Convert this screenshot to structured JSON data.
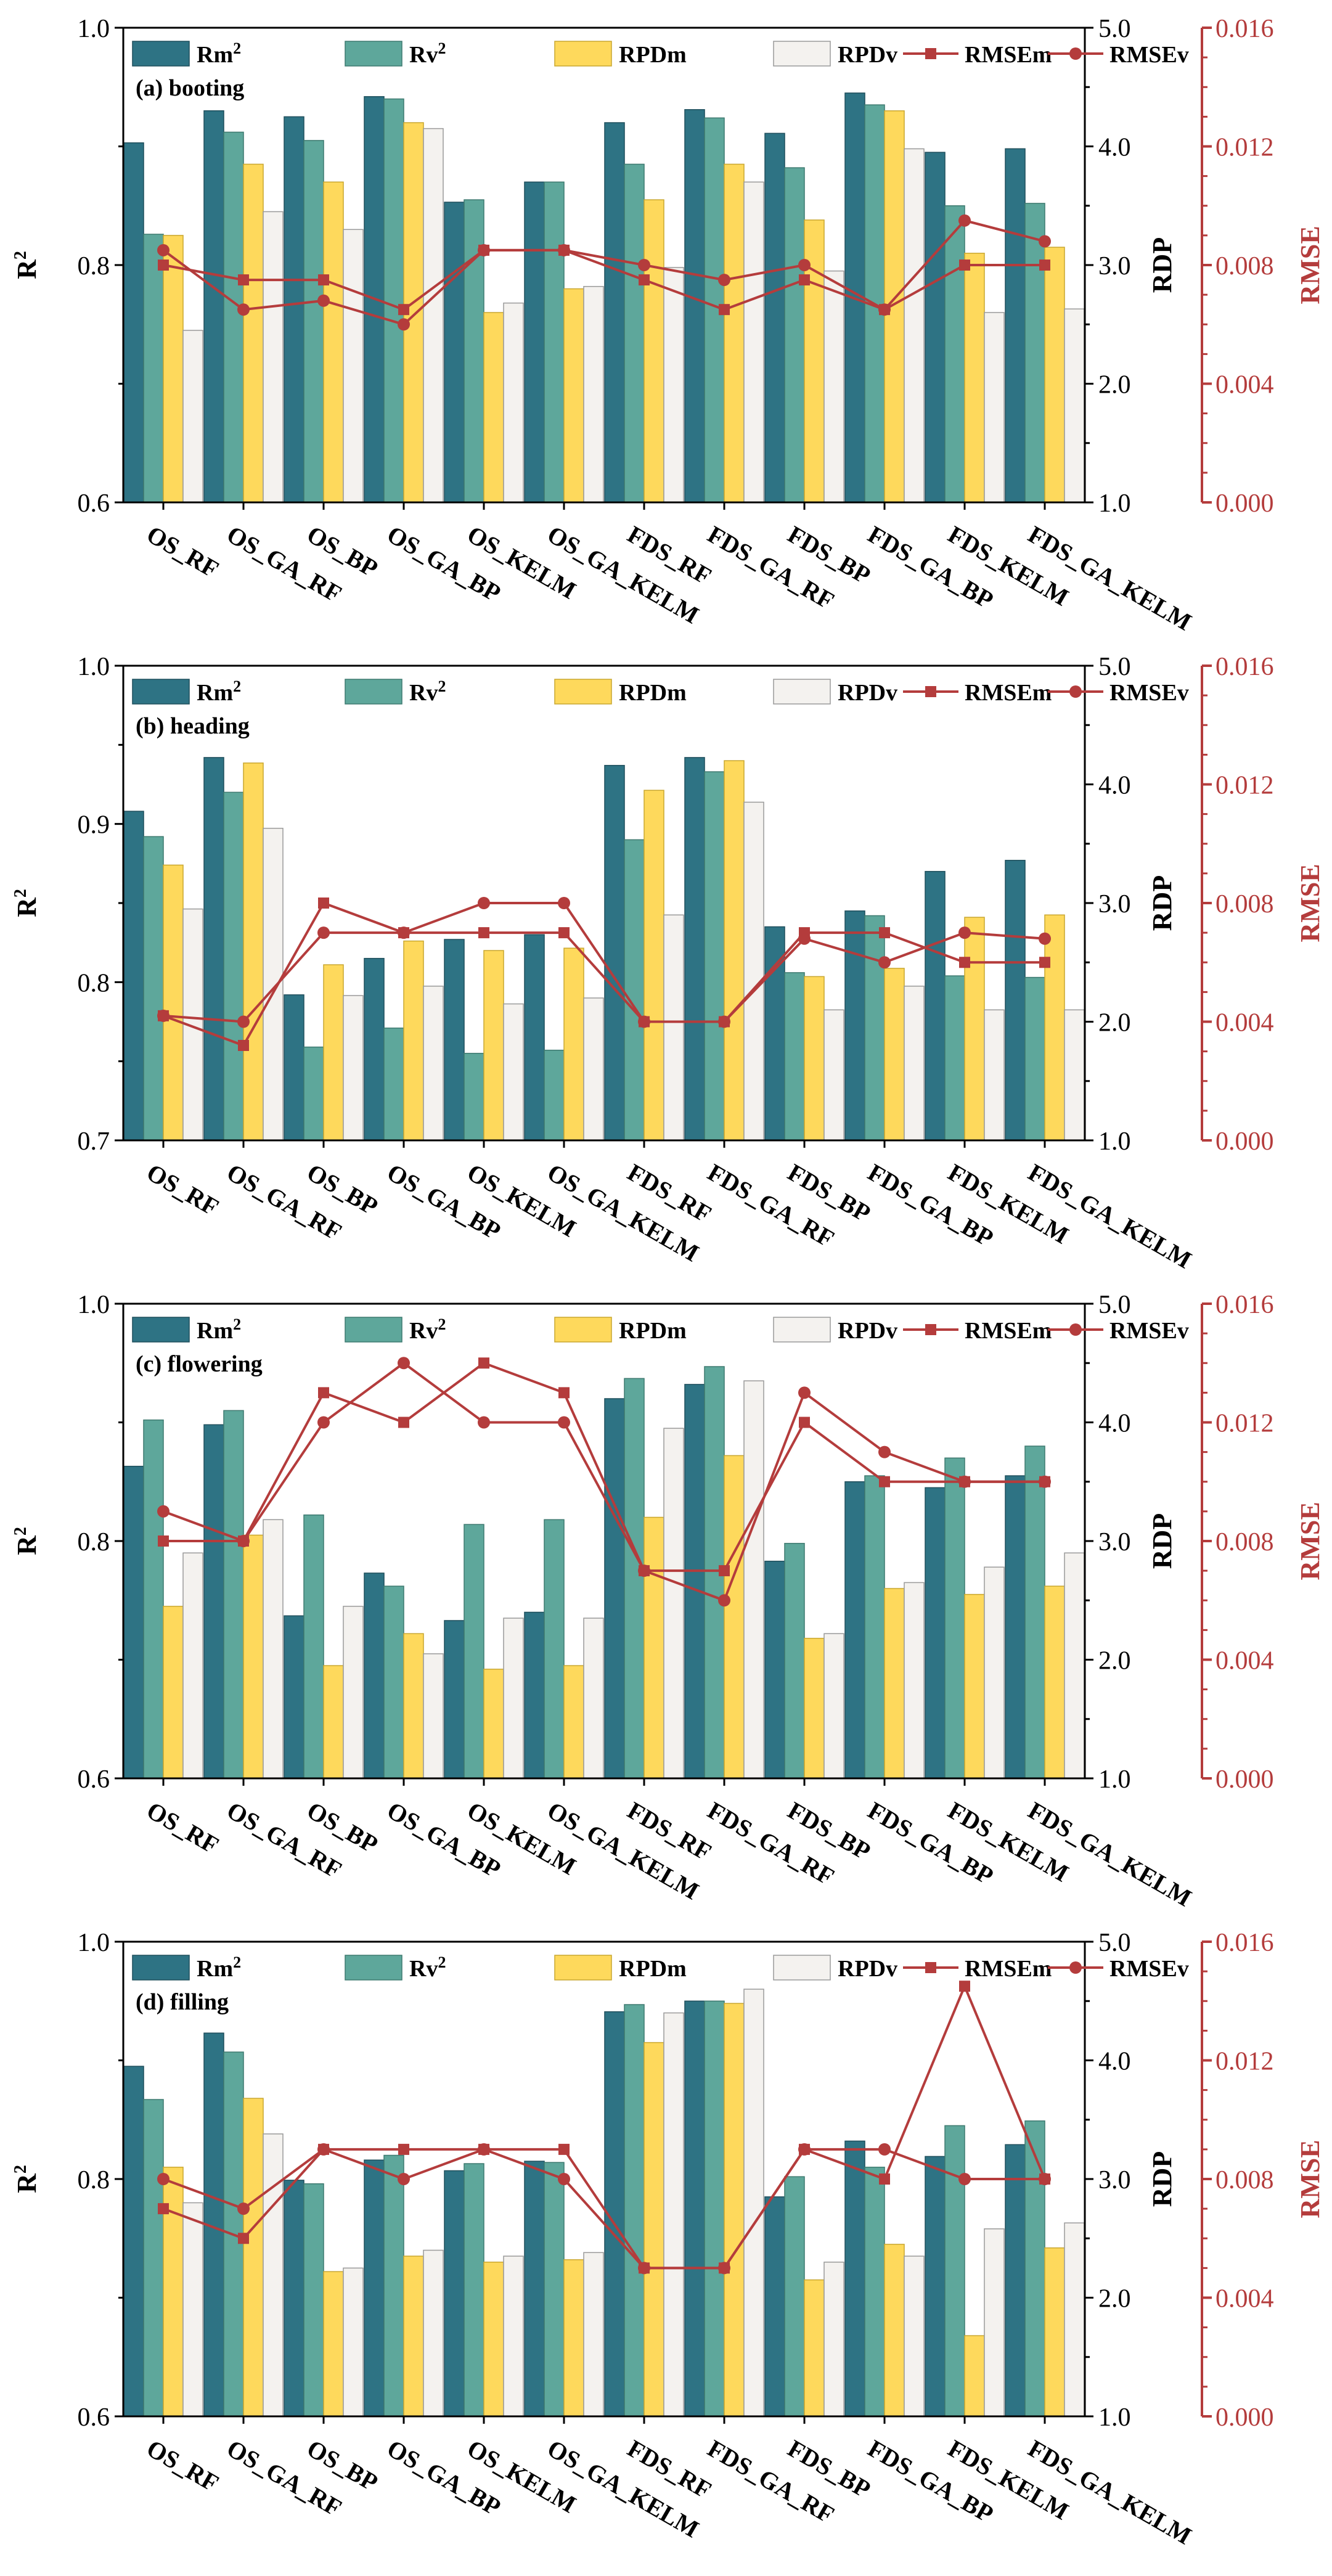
{
  "colors": {
    "rm2": "#2e7384",
    "rv2": "#5ea79b",
    "rpdm": "#fed95c",
    "rpdv": "#f4f2ef",
    "rmse": "#b43c3c"
  },
  "chart_data": [
    {
      "type": "bar",
      "panel_label": "(a) booting",
      "ylabel": "R",
      "ylabel_sup": "2",
      "y2label": "RDP",
      "y3label": "RMSE",
      "ylim": [
        0.6,
        1.0
      ],
      "yticks": [
        "0.6",
        "0.8",
        "1.0"
      ],
      "y2lim": [
        1.0,
        5.0
      ],
      "y2ticks": [
        "1.0",
        "2.0",
        "3.0",
        "4.0",
        "5.0"
      ],
      "y3lim": [
        0.0,
        0.016
      ],
      "y3ticks": [
        "0.000",
        "0.004",
        "0.008",
        "0.012",
        "0.016"
      ],
      "legend": [
        "Rm",
        "Rv",
        "RPDm",
        "RPDv",
        "RMSEm",
        "RMSEv"
      ],
      "categories": [
        "OS_RF",
        "OS_GA_RF",
        "OS_BP",
        "OS_GA_BP",
        "OS_KELM",
        "OS_GA_KELM",
        "FDS_RF",
        "FDS_GA_RF",
        "FDS_BP",
        "FDS_GA_BP",
        "FDS_KELM",
        "FDS_GA_KELM"
      ],
      "series": [
        {
          "name": "Rm2",
          "axis": "left",
          "values": [
            0.903,
            0.93,
            0.925,
            0.942,
            0.853,
            0.87,
            0.92,
            0.931,
            0.911,
            0.945,
            0.895,
            0.898
          ]
        },
        {
          "name": "Rv2",
          "axis": "left",
          "values": [
            0.826,
            0.912,
            0.905,
            0.94,
            0.855,
            0.87,
            0.885,
            0.924,
            0.882,
            0.935,
            0.85,
            0.852
          ]
        },
        {
          "name": "RPDm",
          "axis": "rdp",
          "values": [
            3.25,
            3.85,
            3.7,
            4.2,
            2.6,
            2.8,
            3.55,
            3.85,
            3.38,
            4.3,
            3.1,
            3.15
          ]
        },
        {
          "name": "RPDv",
          "axis": "rdp",
          "values": [
            2.45,
            3.45,
            3.3,
            4.15,
            2.68,
            2.82,
            2.98,
            3.7,
            2.95,
            3.98,
            2.6,
            2.63
          ]
        },
        {
          "name": "RMSEm",
          "axis": "rmse",
          "values": [
            0.008,
            0.0075,
            0.0075,
            0.0065,
            0.0085,
            0.0085,
            0.0075,
            0.0065,
            0.0075,
            0.0065,
            0.008,
            0.008
          ]
        },
        {
          "name": "RMSEv",
          "axis": "rmse",
          "values": [
            0.0085,
            0.0065,
            0.0068,
            0.006,
            0.0085,
            0.0085,
            0.008,
            0.0075,
            0.008,
            0.0065,
            0.0095,
            0.0088
          ]
        }
      ]
    },
    {
      "type": "bar",
      "panel_label": "(b) heading",
      "ylabel": "R",
      "ylabel_sup": "2",
      "y2label": "RDP",
      "y3label": "RMSE",
      "ylim": [
        0.7,
        1.0
      ],
      "yticks": [
        "0.7",
        "0.8",
        "0.9",
        "1.0"
      ],
      "y2lim": [
        1.0,
        5.0
      ],
      "y2ticks": [
        "1.0",
        "2.0",
        "3.0",
        "4.0",
        "5.0"
      ],
      "y3lim": [
        0.0,
        0.016
      ],
      "y3ticks": [
        "0.000",
        "0.004",
        "0.008",
        "0.012",
        "0.016"
      ],
      "legend": [
        "Rm",
        "Rv",
        "RPDm",
        "RPDv",
        "RMSEm",
        "RMSEv"
      ],
      "categories": [
        "OS_RF",
        "OS_GA_RF",
        "OS_BP",
        "OS_GA_BP",
        "OS_KELM",
        "OS_GA_KELM",
        "FDS_RF",
        "FDS_GA_RF",
        "FDS_BP",
        "FDS_GA_BP",
        "FDS_KELM",
        "FDS_GA_KELM"
      ],
      "series": [
        {
          "name": "Rm2",
          "axis": "left",
          "values": [
            0.908,
            0.942,
            0.792,
            0.815,
            0.827,
            0.83,
            0.937,
            0.942,
            0.835,
            0.845,
            0.87,
            0.877
          ]
        },
        {
          "name": "Rv2",
          "axis": "left",
          "values": [
            0.892,
            0.92,
            0.759,
            0.771,
            0.755,
            0.757,
            0.89,
            0.933,
            0.806,
            0.842,
            0.804,
            0.803
          ]
        },
        {
          "name": "RPDm",
          "axis": "rdp",
          "values": [
            3.32,
            4.18,
            2.48,
            2.68,
            2.6,
            2.62,
            3.95,
            4.2,
            2.38,
            2.45,
            2.88,
            2.9
          ]
        },
        {
          "name": "RPDv",
          "axis": "rdp",
          "values": [
            2.95,
            3.63,
            2.22,
            2.3,
            2.15,
            2.2,
            2.9,
            3.85,
            2.1,
            2.3,
            2.1,
            2.1
          ]
        },
        {
          "name": "RMSEm",
          "axis": "rmse",
          "values": [
            0.0042,
            0.0032,
            0.008,
            0.007,
            0.007,
            0.007,
            0.004,
            0.004,
            0.007,
            0.007,
            0.006,
            0.006
          ]
        },
        {
          "name": "RMSEv",
          "axis": "rmse",
          "values": [
            0.0042,
            0.004,
            0.007,
            0.007,
            0.008,
            0.008,
            0.004,
            0.004,
            0.0068,
            0.006,
            0.007,
            0.0068
          ]
        }
      ]
    },
    {
      "type": "bar",
      "panel_label": "(c) flowering",
      "ylabel": "R",
      "ylabel_sup": "2",
      "y2label": "RDP",
      "y3label": "RMSE",
      "ylim": [
        0.6,
        1.0
      ],
      "yticks": [
        "0.6",
        "0.8",
        "1.0"
      ],
      "y2lim": [
        1.0,
        5.0
      ],
      "y2ticks": [
        "1.0",
        "2.0",
        "3.0",
        "4.0",
        "5.0"
      ],
      "y3lim": [
        0.0,
        0.016
      ],
      "y3ticks": [
        "0.000",
        "0.004",
        "0.008",
        "0.012",
        "0.016"
      ],
      "legend": [
        "Rm",
        "Rv",
        "RPDm",
        "RPDv",
        "RMSEm",
        "RMSEv"
      ],
      "categories": [
        "OS_RF",
        "OS_GA_RF",
        "OS_BP",
        "OS_GA_BP",
        "OS_KELM",
        "OS_GA_KELM",
        "FDS_RF",
        "FDS_GA_RF",
        "FDS_BP",
        "FDS_GA_BP",
        "FDS_KELM",
        "FDS_GA_KELM"
      ],
      "series": [
        {
          "name": "Rm2",
          "axis": "left",
          "values": [
            0.863,
            0.898,
            0.737,
            0.773,
            0.733,
            0.74,
            0.92,
            0.932,
            0.783,
            0.85,
            0.845,
            0.855
          ]
        },
        {
          "name": "Rv2",
          "axis": "left",
          "values": [
            0.902,
            0.91,
            0.822,
            0.762,
            0.814,
            0.818,
            0.937,
            0.947,
            0.798,
            0.855,
            0.87,
            0.88
          ]
        },
        {
          "name": "RPDm",
          "axis": "rdp",
          "values": [
            2.45,
            3.05,
            1.95,
            2.22,
            1.92,
            1.95,
            3.2,
            3.72,
            2.18,
            2.6,
            2.55,
            2.62
          ]
        },
        {
          "name": "RPDv",
          "axis": "rdp",
          "values": [
            2.9,
            3.18,
            2.45,
            2.05,
            2.35,
            2.35,
            3.95,
            4.35,
            2.22,
            2.65,
            2.78,
            2.9
          ]
        },
        {
          "name": "RMSEm",
          "axis": "rmse",
          "values": [
            0.008,
            0.008,
            0.013,
            0.012,
            0.014,
            0.013,
            0.007,
            0.007,
            0.012,
            0.01,
            0.01,
            0.01
          ]
        },
        {
          "name": "RMSEv",
          "axis": "rmse",
          "values": [
            0.009,
            0.008,
            0.012,
            0.014,
            0.012,
            0.012,
            0.007,
            0.006,
            0.013,
            0.011,
            0.01,
            0.01
          ]
        }
      ]
    },
    {
      "type": "bar",
      "panel_label": "(d) filling",
      "ylabel": "R",
      "ylabel_sup": "2",
      "y2label": "RDP",
      "y3label": "RMSE",
      "ylim": [
        0.6,
        1.0
      ],
      "yticks": [
        "0.6",
        "0.8",
        "1.0"
      ],
      "y2lim": [
        1.0,
        5.0
      ],
      "y2ticks": [
        "1.0",
        "2.0",
        "3.0",
        "4.0",
        "5.0"
      ],
      "y3lim": [
        0.0,
        0.016
      ],
      "y3ticks": [
        "0.000",
        "0.004",
        "0.008",
        "0.012",
        "0.016"
      ],
      "legend": [
        "Rm",
        "Rv",
        "RPDm",
        "RPDv",
        "RMSEm",
        "RMSEv"
      ],
      "categories": [
        "OS_RF",
        "OS_GA_RF",
        "OS_BP",
        "OS_GA_BP",
        "OS_KELM",
        "OS_GA_KELM",
        "FDS_RF",
        "FDS_GA_RF",
        "FDS_BP",
        "FDS_GA_BP",
        "FDS_KELM",
        "FDS_GA_KELM"
      ],
      "series": [
        {
          "name": "Rm2",
          "axis": "left",
          "values": [
            0.895,
            0.923,
            0.799,
            0.816,
            0.807,
            0.815,
            0.941,
            0.95,
            0.785,
            0.832,
            0.819,
            0.829
          ]
        },
        {
          "name": "Rv2",
          "axis": "left",
          "values": [
            0.867,
            0.907,
            0.796,
            0.82,
            0.813,
            0.814,
            0.947,
            0.95,
            0.802,
            0.81,
            0.845,
            0.849
          ]
        },
        {
          "name": "RPDm",
          "axis": "rdp",
          "values": [
            3.1,
            3.68,
            2.22,
            2.35,
            2.3,
            2.32,
            4.15,
            4.48,
            2.15,
            2.45,
            1.68,
            2.42
          ]
        },
        {
          "name": "RPDv",
          "axis": "rdp",
          "values": [
            2.8,
            3.38,
            2.25,
            2.4,
            2.35,
            2.38,
            4.4,
            4.6,
            2.3,
            2.35,
            2.58,
            2.63
          ]
        },
        {
          "name": "RMSEm",
          "axis": "rmse",
          "values": [
            0.007,
            0.006,
            0.009,
            0.009,
            0.009,
            0.009,
            0.005,
            0.005,
            0.009,
            0.008,
            0.0145,
            0.008
          ]
        },
        {
          "name": "RMSEv",
          "axis": "rmse",
          "values": [
            0.008,
            0.007,
            0.009,
            0.008,
            0.009,
            0.008,
            0.005,
            0.005,
            0.009,
            0.009,
            0.008,
            0.008
          ]
        }
      ]
    }
  ]
}
